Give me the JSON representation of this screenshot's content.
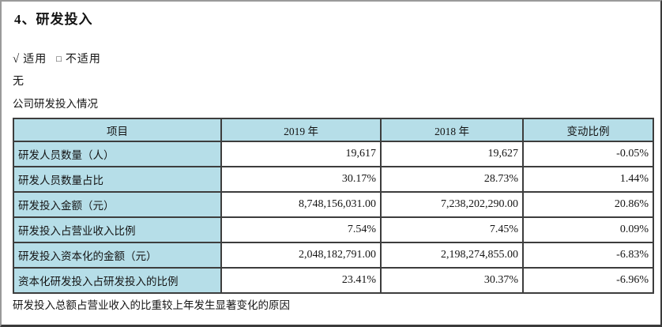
{
  "page": {
    "title": "4、研发投入",
    "applicable_check": "√",
    "applicable_label": "适用",
    "not_applicable_box": "□",
    "not_applicable_label": "不适用",
    "none_text": "无",
    "table_caption": "公司研发投入情况",
    "footer_note": "研发投入总额占营业收入的比重较上年发生显著变化的原因"
  },
  "table": {
    "headers": [
      "项目",
      "2019 年",
      "2018 年",
      "变动比例"
    ],
    "rows": [
      {
        "label": "研发人员数量（人）",
        "y2019": "19,617",
        "y2018": "19,627",
        "change": "-0.05%"
      },
      {
        "label": "研发人员数量占比",
        "y2019": "30.17%",
        "y2018": "28.73%",
        "change": "1.44%"
      },
      {
        "label": "研发投入金额（元）",
        "y2019": "8,748,156,031.00",
        "y2018": "7,238,202,290.00",
        "change": "20.86%"
      },
      {
        "label": "研发投入占营业收入比例",
        "y2019": "7.54%",
        "y2018": "7.45%",
        "change": "0.09%"
      },
      {
        "label": "研发投入资本化的金额（元）",
        "y2019": "2,048,182,791.00",
        "y2018": "2,198,274,855.00",
        "change": "-6.83%"
      },
      {
        "label": "资本化研发投入占研发投入的比例",
        "y2019": "23.41%",
        "y2018": "30.37%",
        "change": "-6.96%"
      }
    ]
  },
  "colors": {
    "header_bg": "#b6dee8",
    "table_border": "#3d3d3d",
    "text": "#141414"
  }
}
